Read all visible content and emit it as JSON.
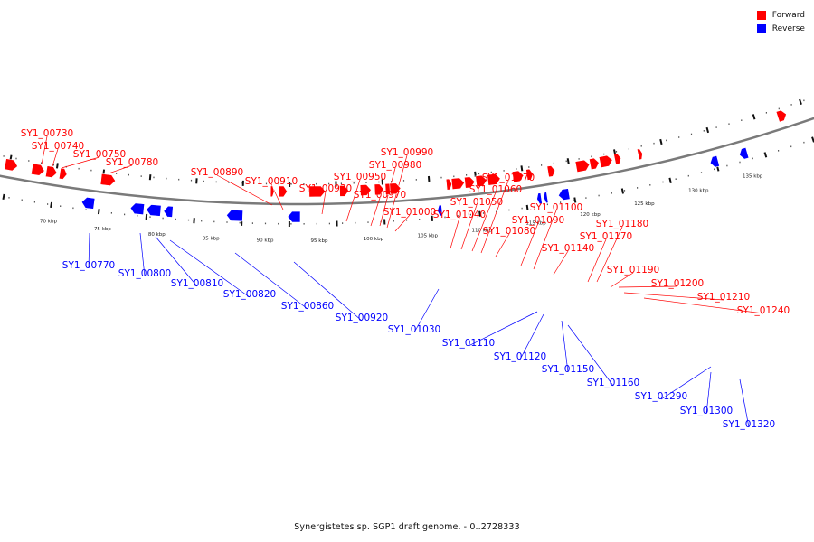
{
  "legend": {
    "forward_label": "Forward",
    "reverse_label": "Reverse",
    "forward_color": "#ff0000",
    "reverse_color": "#0000ff"
  },
  "caption": "Synergistetes sp. SGP1 draft genome. - 0..2728333",
  "colors": {
    "backbone": "#7a7a7a",
    "forward": "#ff0000",
    "reverse": "#0000ff"
  },
  "ticks": [
    "70 kbp",
    "75 kbp",
    "80 kbp",
    "85 kbp",
    "90 kbp",
    "95 kbp",
    "100 kbp",
    "105 kbp",
    "110 kbp",
    "115 kbp",
    "120 kbp",
    "125 kbp",
    "130 kbp",
    "135 kbp"
  ],
  "forward_genes": [
    "SY1_00730",
    "SY1_00740",
    "SY1_00750",
    "SY1_00780",
    "SY1_00890",
    "SY1_00910",
    "SY1_00930",
    "SY1_00950",
    "SY1_00970",
    "SY1_00980",
    "SY1_00990",
    "SY1_01000",
    "SY1_01040",
    "SY1_01050",
    "SY1_01060",
    "SY1_01070",
    "SY1_01080",
    "SY1_01090",
    "SY1_01100",
    "SY1_01140",
    "SY1_01170",
    "SY1_01180",
    "SY1_01190",
    "SY1_01200",
    "SY1_01210",
    "SY1_01240"
  ],
  "reverse_genes": [
    "SY1_00770",
    "SY1_00800",
    "SY1_00810",
    "SY1_00820",
    "SY1_00860",
    "SY1_00920",
    "SY1_01030",
    "SY1_01110",
    "SY1_01120",
    "SY1_01150",
    "SY1_01160",
    "SY1_01290",
    "SY1_01300",
    "SY1_01320"
  ]
}
